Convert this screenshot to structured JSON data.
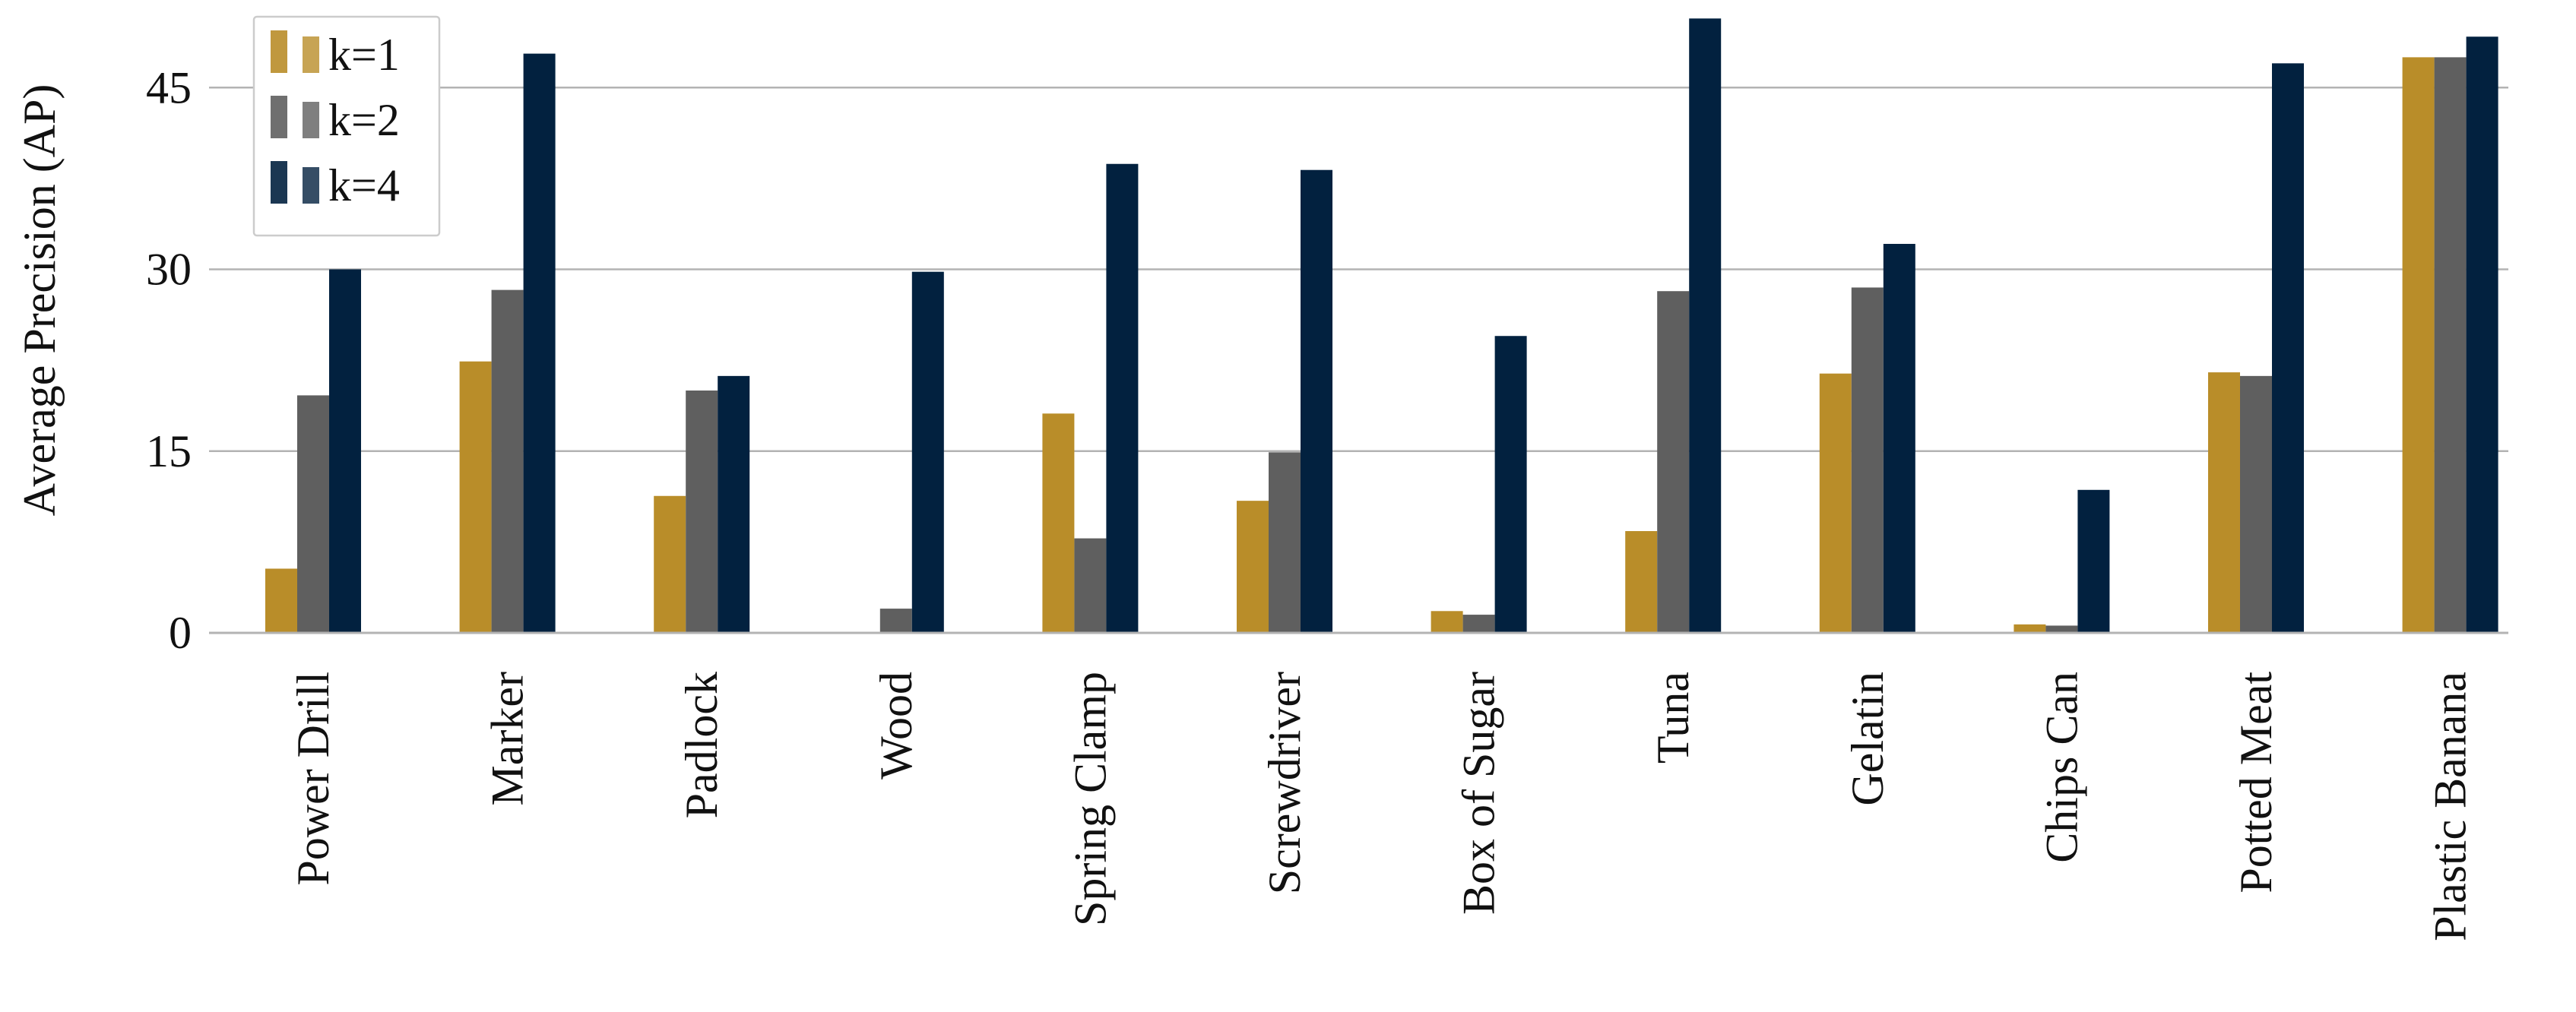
{
  "chart_data": {
    "type": "bar",
    "ylabel": "Average Precision (AP)",
    "xlabel": "",
    "ylim": [
      0,
      51
    ],
    "yticks": [
      0,
      15,
      30,
      45
    ],
    "grid": true,
    "legend_position": "top-left",
    "categories": [
      "Power Drill",
      "Marker",
      "Padlock",
      "Wood",
      "Spring Clamp",
      "Screwdriver",
      "Box of Sugar",
      "Tuna",
      "Gelatin",
      "Chips Can",
      "Potted Meat",
      "Plastic Banana"
    ],
    "series": [
      {
        "name": "k=1",
        "color": "#b98d29",
        "values": [
          5.3,
          22.4,
          11.3,
          0,
          18.1,
          10.9,
          1.8,
          8.4,
          21.4,
          0.7,
          21.5,
          47.5
        ]
      },
      {
        "name": "k=2",
        "color": "#5f5f5f",
        "values": [
          19.6,
          28.3,
          20.0,
          2.0,
          7.8,
          14.9,
          1.5,
          28.2,
          28.5,
          0.6,
          21.2,
          47.5
        ]
      },
      {
        "name": "k=4",
        "color": "#02213f",
        "values": [
          30.0,
          47.8,
          21.2,
          29.8,
          38.7,
          38.2,
          24.5,
          50.7,
          32.1,
          11.8,
          47.0,
          49.2
        ]
      }
    ]
  }
}
